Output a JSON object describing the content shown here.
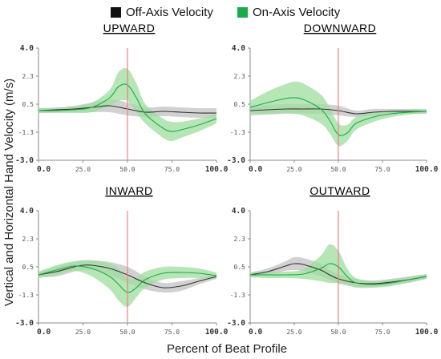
{
  "legend": {
    "off_axis": {
      "label": "Off-Axis Velocity",
      "color": "#111111"
    },
    "on_axis": {
      "label": "On-Axis Velocity",
      "color": "#1aab4a"
    }
  },
  "colors": {
    "off_band": "#bdbdbd",
    "on_band": "#9ddc9d",
    "on_line": "#1aab4a",
    "off_line": "#333333",
    "marker": "#f08080"
  },
  "ylabel": "Vertical and Horizontal Hand Velocity (m/s)",
  "xlabel": "Percent of Beat Profile",
  "chart_data": [
    {
      "type": "line",
      "title": "UPWARD",
      "xlim": [
        0,
        100
      ],
      "ylim": [
        -3.0,
        4.0
      ],
      "yticks": [
        "4.0",
        "2.3",
        "0.5",
        "-1.3",
        "-3.0"
      ],
      "xticks": [
        "0.0",
        "25.0",
        "50.0",
        "75.0",
        "100.0"
      ],
      "marker_x": 50,
      "series": [
        {
          "name": "Off-Axis Velocity",
          "x": [
            0,
            10,
            20,
            30,
            40,
            50,
            60,
            70,
            80,
            90,
            100
          ],
          "y": [
            0.1,
            0.15,
            0.2,
            0.3,
            0.4,
            0.2,
            0.0,
            0.05,
            0.0,
            -0.05,
            -0.05
          ],
          "band": [
            0.15,
            0.15,
            0.2,
            0.3,
            0.4,
            0.4,
            0.3,
            0.3,
            0.3,
            0.3,
            0.3
          ]
        },
        {
          "name": "On-Axis Velocity",
          "x": [
            0,
            10,
            20,
            30,
            40,
            45,
            50,
            55,
            60,
            70,
            75,
            80,
            90,
            100
          ],
          "y": [
            0.1,
            0.1,
            0.15,
            0.3,
            0.9,
            1.6,
            1.7,
            0.9,
            -0.1,
            -1.0,
            -1.2,
            -1.1,
            -0.8,
            -0.4
          ],
          "band": [
            0.15,
            0.15,
            0.2,
            0.3,
            0.5,
            0.9,
            1.0,
            0.9,
            0.6,
            0.6,
            0.6,
            0.5,
            0.4,
            0.3
          ]
        }
      ]
    },
    {
      "type": "line",
      "title": "DOWNWARD",
      "xlim": [
        0,
        100
      ],
      "ylim": [
        -3.0,
        4.0
      ],
      "yticks": [
        "4.0",
        "2.3",
        "0.5",
        "-1.3",
        "-3.0"
      ],
      "xticks": [
        "0.0",
        "25.0",
        "50.0",
        "75.0",
        "100.0"
      ],
      "marker_x": 50,
      "series": [
        {
          "name": "Off-Axis Velocity",
          "x": [
            0,
            10,
            20,
            30,
            40,
            50,
            60,
            70,
            80,
            90,
            100
          ],
          "y": [
            0.1,
            0.15,
            0.2,
            0.2,
            0.2,
            0.1,
            -0.1,
            0.0,
            0.05,
            0.05,
            0.05
          ],
          "band": [
            0.3,
            0.3,
            0.3,
            0.3,
            0.3,
            0.3,
            0.2,
            0.2,
            0.15,
            0.15,
            0.15
          ]
        },
        {
          "name": "On-Axis Velocity",
          "x": [
            0,
            10,
            20,
            25,
            30,
            40,
            45,
            50,
            55,
            60,
            70,
            80,
            90,
            100
          ],
          "y": [
            0.3,
            0.6,
            0.85,
            0.9,
            0.8,
            0.2,
            -0.5,
            -1.4,
            -1.3,
            -0.7,
            -0.3,
            -0.1,
            0.0,
            0.05
          ],
          "band": [
            0.4,
            0.7,
            0.9,
            1.0,
            1.0,
            0.9,
            0.8,
            0.7,
            0.5,
            0.4,
            0.3,
            0.2,
            0.15,
            0.1
          ]
        }
      ]
    },
    {
      "type": "line",
      "title": "INWARD",
      "xlim": [
        0,
        100
      ],
      "ylim": [
        -3.0,
        4.0
      ],
      "yticks": [
        "4.0",
        "2.3",
        "0.5",
        "-1.3",
        "-3.0"
      ],
      "xticks": [
        "0.0",
        "25.0",
        "50.0",
        "75.0",
        "100.0"
      ],
      "marker_x": 50,
      "series": [
        {
          "name": "Off-Axis Velocity",
          "x": [
            0,
            10,
            20,
            25,
            30,
            40,
            50,
            60,
            70,
            80,
            90,
            100
          ],
          "y": [
            0.0,
            0.2,
            0.5,
            0.6,
            0.6,
            0.4,
            0.0,
            -0.5,
            -0.8,
            -0.7,
            -0.4,
            -0.1
          ],
          "band": [
            0.15,
            0.3,
            0.3,
            0.3,
            0.3,
            0.4,
            0.5,
            0.4,
            0.3,
            0.3,
            0.2,
            0.15
          ]
        },
        {
          "name": "On-Axis Velocity",
          "x": [
            0,
            10,
            20,
            30,
            40,
            45,
            50,
            55,
            60,
            70,
            80,
            90,
            100
          ],
          "y": [
            0.0,
            0.3,
            0.55,
            0.4,
            -0.1,
            -0.6,
            -1.1,
            -0.8,
            -0.3,
            0.1,
            0.15,
            0.1,
            -0.05
          ],
          "band": [
            0.2,
            0.3,
            0.3,
            0.5,
            0.8,
            1.0,
            0.9,
            0.6,
            0.5,
            0.4,
            0.35,
            0.3,
            0.2
          ]
        }
      ]
    },
    {
      "type": "line",
      "title": "OUTWARD",
      "xlim": [
        0,
        100
      ],
      "ylim": [
        -3.0,
        4.0
      ],
      "yticks": [
        "4.0",
        "2.3",
        "0.5",
        "-1.3",
        "-3.0"
      ],
      "xticks": [
        "0.0",
        "25.0",
        "50.0",
        "75.0",
        "100.0"
      ],
      "marker_x": 50,
      "series": [
        {
          "name": "Off-Axis Velocity",
          "x": [
            0,
            10,
            20,
            25,
            30,
            40,
            45,
            50,
            60,
            70,
            80,
            90,
            100
          ],
          "y": [
            0.0,
            0.2,
            0.55,
            0.7,
            0.65,
            0.3,
            0.0,
            -0.25,
            -0.5,
            -0.55,
            -0.45,
            -0.3,
            -0.1
          ],
          "band": [
            0.15,
            0.2,
            0.3,
            0.4,
            0.4,
            0.4,
            0.3,
            0.3,
            0.25,
            0.2,
            0.2,
            0.2,
            0.15
          ]
        },
        {
          "name": "On-Axis Velocity",
          "x": [
            0,
            10,
            20,
            30,
            40,
            45,
            50,
            55,
            60,
            70,
            80,
            90,
            100
          ],
          "y": [
            0.0,
            0.0,
            0.0,
            0.05,
            0.4,
            0.7,
            0.5,
            -0.1,
            -0.5,
            -0.6,
            -0.5,
            -0.3,
            -0.1
          ],
          "band": [
            0.15,
            0.2,
            0.2,
            0.3,
            0.8,
            1.2,
            1.0,
            0.5,
            0.3,
            0.2,
            0.2,
            0.15,
            0.15
          ]
        }
      ]
    }
  ]
}
